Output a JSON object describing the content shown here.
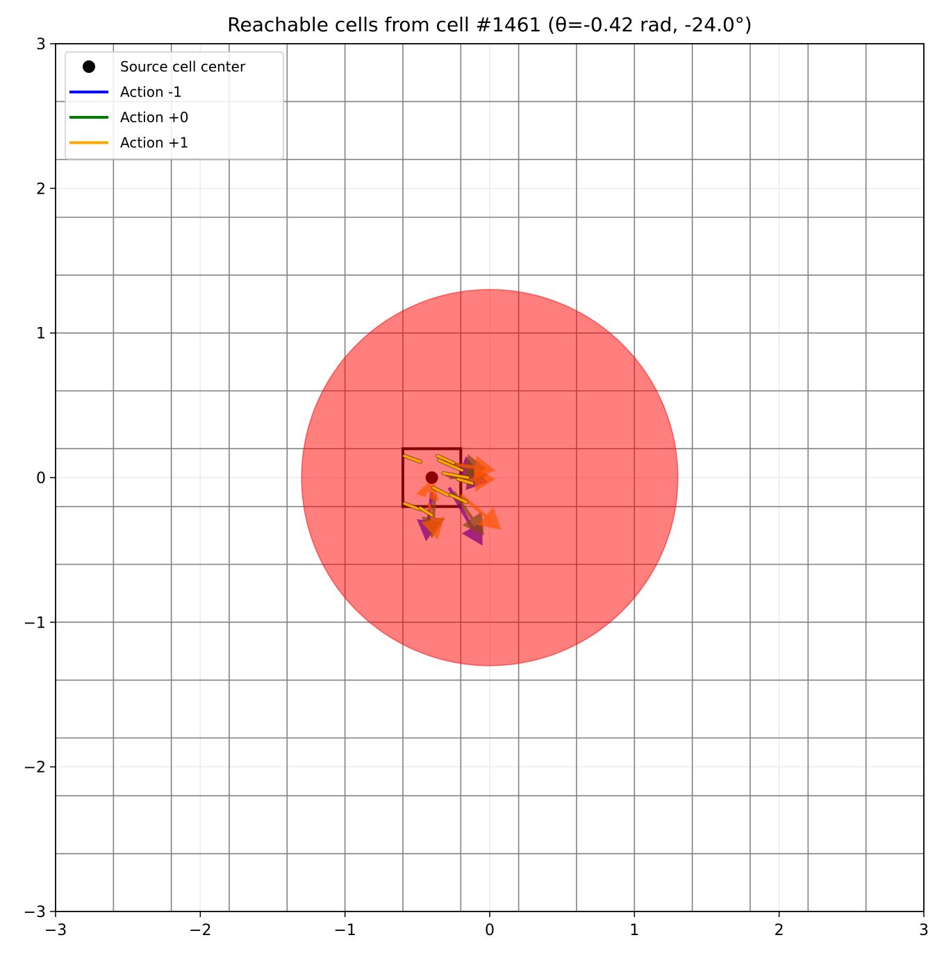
{
  "chart_data": {
    "type": "scatter",
    "title": "Reachable cells from cell #1461 (θ=-0.42 rad, -24.0°)",
    "xlabel": "",
    "ylabel": "",
    "xlim": [
      -3,
      3
    ],
    "ylim": [
      -3,
      3
    ],
    "xticks": [
      -3,
      -2,
      -1,
      0,
      1,
      2,
      3
    ],
    "yticks": [
      -3,
      -2,
      -1,
      0,
      1,
      2,
      3
    ],
    "xtick_labels": [
      "−3",
      "−2",
      "−1",
      "0",
      "1",
      "2",
      "3"
    ],
    "ytick_labels": [
      "−3",
      "−2",
      "−1",
      "0",
      "1",
      "2",
      "3"
    ],
    "grid": true,
    "cell_grid_lines": [
      -2.6,
      -2.2,
      -1.8,
      -1.4,
      -1.0,
      -0.6,
      -0.2,
      0.2,
      0.6,
      1.0,
      1.4,
      1.8,
      2.2,
      2.6
    ],
    "reachable_circle": {
      "center": [
        0,
        0
      ],
      "radius": 1.3,
      "color": "#ff0000"
    },
    "source_cell": {
      "x_range": [
        -0.6,
        -0.2
      ],
      "y_range": [
        -0.2,
        0.2
      ],
      "color": "#7f0000"
    },
    "source_center": {
      "x": -0.4,
      "y": 0.0,
      "color": "#8b0000"
    },
    "legend": {
      "placement": "top-left",
      "entries": [
        {
          "label": "Source cell center",
          "kind": "marker",
          "color": "#000000"
        },
        {
          "label": "Action -1",
          "kind": "line",
          "color": "#0000ff"
        },
        {
          "label": "Action +0",
          "kind": "line",
          "color": "#008000"
        },
        {
          "label": "Action +1",
          "kind": "line",
          "color": "#ffa500"
        }
      ]
    },
    "arrows": [
      {
        "action": "-1",
        "x1": -0.4,
        "y1": -0.1,
        "x2": -0.44,
        "y2": -0.44,
        "color": "#800080"
      },
      {
        "action": "-1",
        "x1": -0.28,
        "y1": -0.07,
        "x2": -0.05,
        "y2": -0.47,
        "color": "#800080"
      },
      {
        "action": "-1",
        "x1": -0.3,
        "y1": 0.02,
        "x2": -0.01,
        "y2": -0.03,
        "color": "#800080"
      },
      {
        "action": "-1",
        "x1": -0.32,
        "y1": 0.12,
        "x2": -0.06,
        "y2": 0.02,
        "color": "#800080"
      },
      {
        "action": "+0",
        "x1": -0.38,
        "y1": -0.12,
        "x2": -0.4,
        "y2": -0.42,
        "color": "#8b4513"
      },
      {
        "action": "+0",
        "x1": -0.25,
        "y1": -0.1,
        "x2": -0.04,
        "y2": -0.4,
        "color": "#8b4513"
      },
      {
        "action": "+0",
        "x1": -0.28,
        "y1": 0.0,
        "x2": -0.01,
        "y2": 0.02,
        "color": "#8b4513"
      },
      {
        "action": "+0",
        "x1": -0.3,
        "y1": 0.1,
        "x2": -0.02,
        "y2": 0.06,
        "color": "#8b4513"
      },
      {
        "action": "+1",
        "x1": -0.42,
        "y1": -0.18,
        "x2": -0.36,
        "y2": -0.43,
        "color": "#ff5500"
      },
      {
        "action": "+1",
        "x1": -0.2,
        "y1": -0.12,
        "x2": 0.08,
        "y2": -0.36,
        "color": "#ff5500"
      },
      {
        "action": "+1",
        "x1": -0.22,
        "y1": -0.02,
        "x2": 0.04,
        "y2": -0.01,
        "color": "#ff5500"
      },
      {
        "action": "+1",
        "x1": -0.24,
        "y1": 0.09,
        "x2": 0.04,
        "y2": 0.05,
        "color": "#ff5500"
      },
      {
        "action": "+1",
        "x1": -0.42,
        "y1": -0.1,
        "x2": -0.39,
        "y2": 0.0,
        "color": "#ff5500"
      }
    ],
    "sample_segments": [
      {
        "x1": -0.59,
        "y1": 0.15,
        "x2": -0.48,
        "y2": 0.11
      },
      {
        "x1": -0.36,
        "y1": 0.15,
        "x2": -0.25,
        "y2": 0.1
      },
      {
        "x1": -0.35,
        "y1": 0.12,
        "x2": -0.19,
        "y2": 0.05
      },
      {
        "x1": -0.32,
        "y1": 0.03,
        "x2": -0.15,
        "y2": 0.0
      },
      {
        "x1": -0.22,
        "y1": -0.01,
        "x2": -0.12,
        "y2": -0.04
      },
      {
        "x1": -0.39,
        "y1": -0.07,
        "x2": -0.29,
        "y2": -0.12
      },
      {
        "x1": -0.27,
        "y1": -0.12,
        "x2": -0.16,
        "y2": -0.17
      },
      {
        "x1": -0.59,
        "y1": -0.18,
        "x2": -0.48,
        "y2": -0.22
      },
      {
        "x1": -0.48,
        "y1": -0.21,
        "x2": -0.4,
        "y2": -0.26
      }
    ]
  }
}
